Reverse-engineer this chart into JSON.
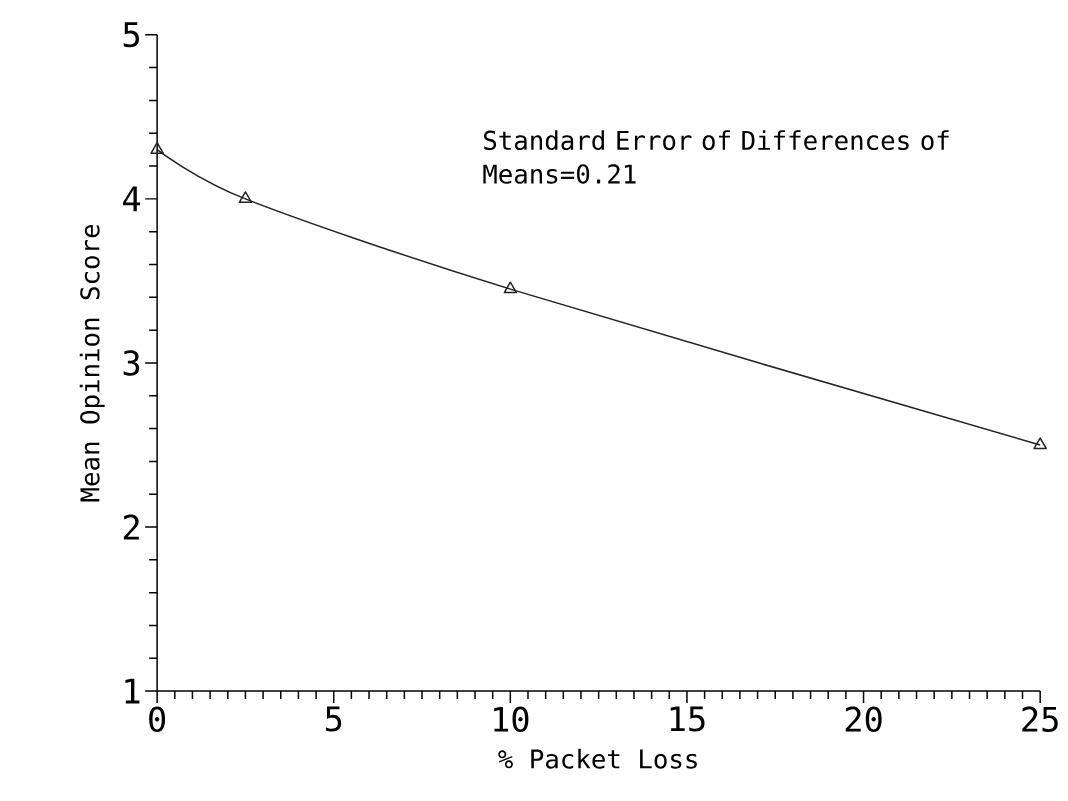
{
  "chart_data": {
    "type": "line",
    "xlabel": "% Packet Loss",
    "ylabel": "Mean Opinion Score",
    "annotations": [
      "Standard Error of Differences of Means=0.21"
    ],
    "x": [
      0,
      2.5,
      10,
      25
    ],
    "series": [
      {
        "color": "#222222",
        "values": [
          4.3,
          4.0,
          3.45,
          2.5
        ]
      }
    ],
    "xlim": [
      0,
      25
    ],
    "ylim": [
      1,
      5
    ],
    "xticks": [
      0,
      5,
      10,
      15,
      20,
      25
    ],
    "yticks": [
      1,
      2,
      3,
      4,
      5
    ],
    "marker": "triangle",
    "line_style": "solid",
    "grid": false
  }
}
